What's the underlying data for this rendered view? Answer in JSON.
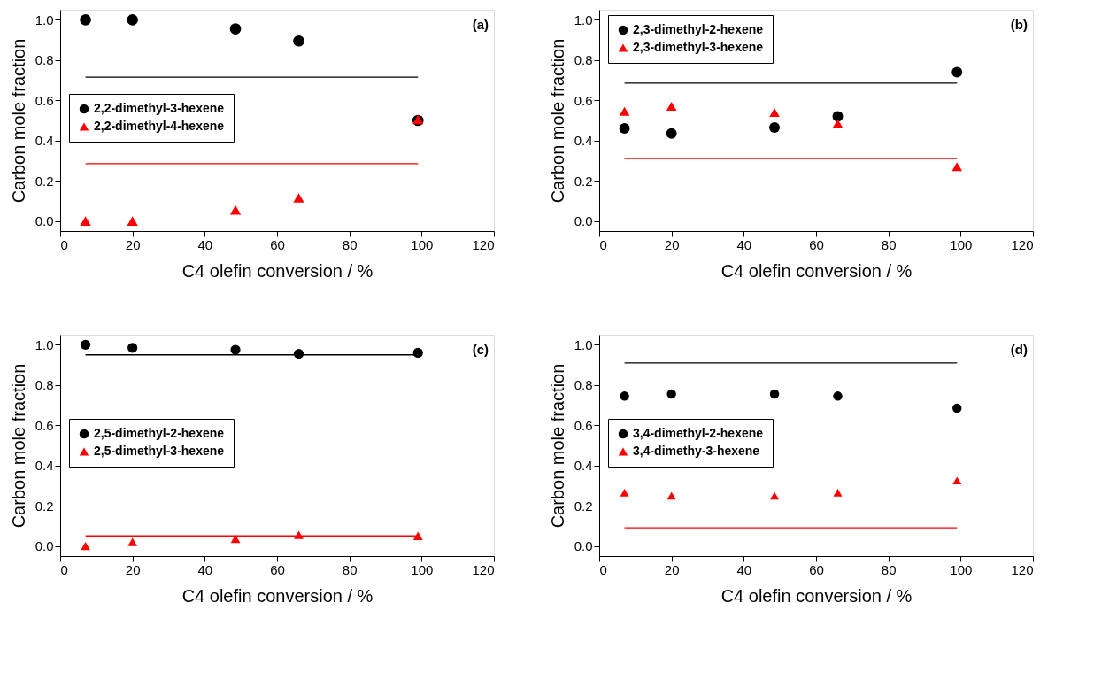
{
  "chart_data": [
    {
      "type": "scatter",
      "annotations": [
        "(a)"
      ],
      "xlabel": "C4 olefin conversion / %",
      "ylabel": "Carbon mole fraction",
      "xlim": [
        0,
        120
      ],
      "ylim": [
        -0.05,
        1.05
      ],
      "xticks": [
        0,
        20,
        40,
        60,
        80,
        100,
        120
      ],
      "yticks": [
        {
          "value": 0,
          "label": "0.0"
        },
        {
          "value": 0.2,
          "label": "0.2"
        },
        {
          "value": 0.4,
          "label": "0.4"
        },
        {
          "value": 0.6,
          "label": "0.6"
        },
        {
          "value": 0.8,
          "label": "0.8"
        },
        {
          "value": 1,
          "label": "1.0"
        }
      ],
      "grid": false,
      "legend": "left",
      "x": [
        7,
        20,
        48.5,
        66,
        99
      ],
      "series": [
        {
          "name": "2,2-dimethyl-3-hexene",
          "color": "#000000",
          "marker": "circle",
          "values": [
            1.0,
            1.0,
            0.955,
            0.895,
            0.5
          ]
        },
        {
          "name": "2,2-dimethyl-4-hexene",
          "color": "#ff0000",
          "marker": "triangle",
          "values": [
            0.0,
            0.0,
            0.055,
            0.115,
            0.505
          ]
        },
        {
          "type": "line",
          "color": "#000000",
          "values": [
            0.715,
            0.715,
            0.715,
            0.715,
            0.715
          ]
        },
        {
          "type": "line",
          "color": "#ff0000",
          "values": [
            0.285,
            0.285,
            0.285,
            0.285,
            0.285
          ]
        }
      ]
    },
    {
      "type": "scatter",
      "annotations": [
        "(b)"
      ],
      "xlabel": "C4 olefin conversion / %",
      "ylabel": "Carbon mole fraction",
      "xlim": [
        0,
        120
      ],
      "ylim": [
        -0.05,
        1.05
      ],
      "xticks": [
        0,
        20,
        40,
        60,
        80,
        100,
        120
      ],
      "yticks": [
        {
          "value": 0,
          "label": "0.0"
        },
        {
          "value": 0.2,
          "label": "0.2"
        },
        {
          "value": 0.4,
          "label": "0.4"
        },
        {
          "value": 0.6,
          "label": "0.6"
        },
        {
          "value": 0.8,
          "label": "0.8"
        },
        {
          "value": 1,
          "label": "1.0"
        }
      ],
      "grid": false,
      "legend": "top left",
      "x": [
        7,
        20,
        48.5,
        66,
        99
      ],
      "series": [
        {
          "name": "2,3-dimethyl-2-hexene",
          "color": "#000000",
          "marker": "circle",
          "values": [
            0.46,
            0.435,
            0.465,
            0.52,
            0.74
          ]
        },
        {
          "name": "2,3-dimethyl-3-hexene",
          "color": "#ff0000",
          "marker": "triangle",
          "values": [
            0.545,
            0.57,
            0.54,
            0.485,
            0.27
          ]
        },
        {
          "type": "line",
          "color": "#000000",
          "values": [
            0.685,
            0.685,
            0.685,
            0.685,
            0.685
          ]
        },
        {
          "type": "line",
          "color": "#ff0000",
          "values": [
            0.31,
            0.31,
            0.31,
            0.31,
            0.31
          ]
        }
      ]
    },
    {
      "type": "scatter",
      "annotations": [
        "(c)"
      ],
      "xlabel": "C4 olefin conversion / %",
      "ylabel": "Carbon mole fraction",
      "xlim": [
        0,
        120
      ],
      "ylim": [
        -0.05,
        1.05
      ],
      "xticks": [
        0,
        20,
        40,
        60,
        80,
        100,
        120
      ],
      "yticks": [
        {
          "value": 0,
          "label": "0.0"
        },
        {
          "value": 0.2,
          "label": "0.2"
        },
        {
          "value": 0.4,
          "label": "0.4"
        },
        {
          "value": 0.6,
          "label": "0.6"
        },
        {
          "value": 0.8,
          "label": "0.8"
        },
        {
          "value": 1,
          "label": "1.0"
        }
      ],
      "grid": false,
      "legend": "left",
      "x": [
        7,
        20,
        48.5,
        66,
        99
      ],
      "series": [
        {
          "name": "2,5-dimethyl-2-hexene",
          "color": "#000000",
          "marker": "circle",
          "values": [
            1.0,
            0.985,
            0.975,
            0.955,
            0.96
          ]
        },
        {
          "name": "2,5-dimethyl-3-hexene",
          "color": "#ff0000",
          "marker": "triangle",
          "values": [
            0.0,
            0.02,
            0.035,
            0.055,
            0.05
          ]
        },
        {
          "type": "line",
          "color": "#000000",
          "values": [
            0.95,
            0.95,
            0.95,
            0.95,
            0.95
          ]
        },
        {
          "type": "line",
          "color": "#ff0000",
          "values": [
            0.05,
            0.05,
            0.05,
            0.05,
            0.05
          ]
        }
      ]
    },
    {
      "type": "scatter",
      "annotations": [
        "(d)"
      ],
      "xlabel": "C4 olefin conversion / %",
      "ylabel": "Carbon mole fraction",
      "xlim": [
        0,
        120
      ],
      "ylim": [
        -0.05,
        1.05
      ],
      "xticks": [
        0,
        20,
        40,
        60,
        80,
        100,
        120
      ],
      "yticks": [
        {
          "value": 0,
          "label": "0.0"
        },
        {
          "value": 0.2,
          "label": "0.2"
        },
        {
          "value": 0.4,
          "label": "0.4"
        },
        {
          "value": 0.6,
          "label": "0.6"
        },
        {
          "value": 0.8,
          "label": "0.8"
        },
        {
          "value": 1,
          "label": "1.0"
        }
      ],
      "grid": false,
      "legend": "left",
      "x": [
        7,
        20,
        48.5,
        66,
        99
      ],
      "series": [
        {
          "name": "3,4-dimethyl-2-hexene",
          "color": "#000000",
          "marker": "circle",
          "values": [
            0.745,
            0.755,
            0.755,
            0.745,
            0.685
          ]
        },
        {
          "name": "3,4-dimethy-3-hexene",
          "color": "#ff0000",
          "marker": "triangle",
          "values": [
            0.265,
            0.25,
            0.25,
            0.265,
            0.325
          ]
        },
        {
          "type": "line",
          "color": "#000000",
          "values": [
            0.91,
            0.91,
            0.91,
            0.91,
            0.91
          ]
        },
        {
          "type": "line",
          "color": "#ff0000",
          "values": [
            0.09,
            0.09,
            0.09,
            0.09,
            0.09
          ]
        }
      ]
    }
  ]
}
